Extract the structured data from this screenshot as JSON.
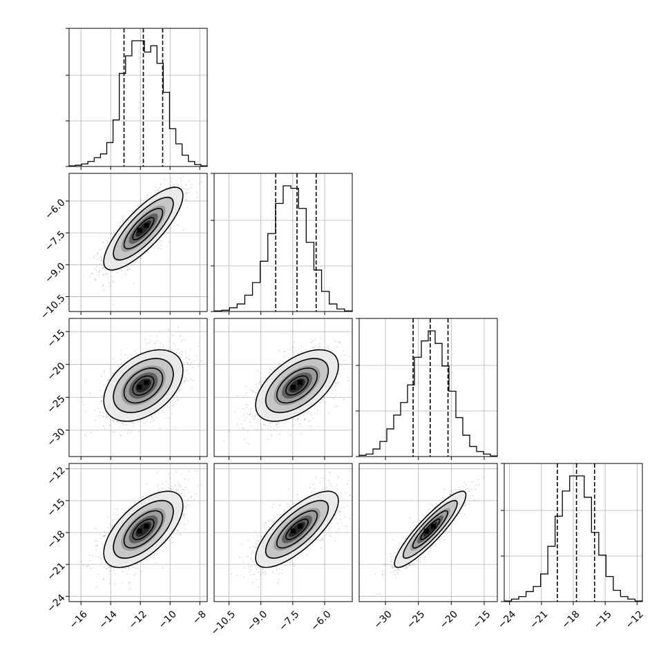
{
  "chart_data": {
    "type": "corner",
    "n_params": 4,
    "params": [
      {
        "index": 0,
        "range": [
          -16.8,
          -7.5
        ],
        "ticks": [
          -16,
          -14,
          -12,
          -10,
          -8
        ],
        "tick_labels": [
          "−16",
          "−14",
          "−12",
          "−10",
          "−8"
        ],
        "quantiles": [
          -13.1,
          -11.8,
          -10.5
        ],
        "hist": [
          0.005,
          0.01,
          0.02,
          0.04,
          0.07,
          0.1,
          0.19,
          0.37,
          0.74,
          0.88,
          1.0,
          1.0,
          0.91,
          0.96,
          0.82,
          0.59,
          0.3,
          0.18,
          0.09,
          0.04,
          0.015,
          0.005
        ]
      },
      {
        "index": 1,
        "range": [
          -11.2,
          -4.7
        ],
        "ticks": [
          -10.5,
          -9.0,
          -7.5,
          -6.0
        ],
        "tick_labels": [
          "−10.5",
          "−9.0",
          "−7.5",
          "−6.0"
        ],
        "quantiles": [
          -8.3,
          -7.3,
          -6.4
        ],
        "hist": [
          0.005,
          0.01,
          0.03,
          0.06,
          0.13,
          0.23,
          0.4,
          0.62,
          0.86,
          1.0,
          0.98,
          0.82,
          0.55,
          0.33,
          0.16,
          0.06,
          0.02,
          0.005
        ]
      },
      {
        "index": 2,
        "range": [
          -34.0,
          -13.0
        ],
        "ticks": [
          -30,
          -25,
          -20,
          -15
        ],
        "tick_labels": [
          "−30",
          "−25",
          "−20",
          "−15"
        ],
        "quantiles": [
          -25.8,
          -23.2,
          -20.5
        ],
        "hist": [
          0.01,
          0.02,
          0.06,
          0.12,
          0.22,
          0.33,
          0.43,
          0.57,
          0.79,
          0.92,
          1.0,
          0.9,
          0.72,
          0.52,
          0.31,
          0.17,
          0.08,
          0.04,
          0.02,
          0.005
        ]
      },
      {
        "index": 3,
        "range": [
          -24.5,
          -11.5
        ],
        "ticks": [
          -24,
          -21,
          -18,
          -15,
          -12
        ],
        "tick_labels": [
          "−24",
          "−21",
          "−18",
          "−15",
          "−12"
        ],
        "quantiles": [
          -19.5,
          -17.7,
          -16.0
        ],
        "hist": [
          0.005,
          0.02,
          0.04,
          0.08,
          0.12,
          0.22,
          0.44,
          0.68,
          0.88,
          1.0,
          1.0,
          0.83,
          0.55,
          0.37,
          0.2,
          0.09,
          0.04,
          0.02,
          0.005
        ]
      }
    ],
    "pairs": [
      {
        "x": 0,
        "y": 1,
        "correlation": 0.8
      },
      {
        "x": 0,
        "y": 2,
        "correlation": 0.42
      },
      {
        "x": 1,
        "y": 2,
        "correlation": 0.55
      },
      {
        "x": 0,
        "y": 3,
        "correlation": 0.62
      },
      {
        "x": 1,
        "y": 3,
        "correlation": 0.75
      },
      {
        "x": 2,
        "y": 3,
        "correlation": 0.9
      }
    ],
    "grid": true,
    "histogram_type": "step",
    "quantile_lines": "dashed"
  }
}
